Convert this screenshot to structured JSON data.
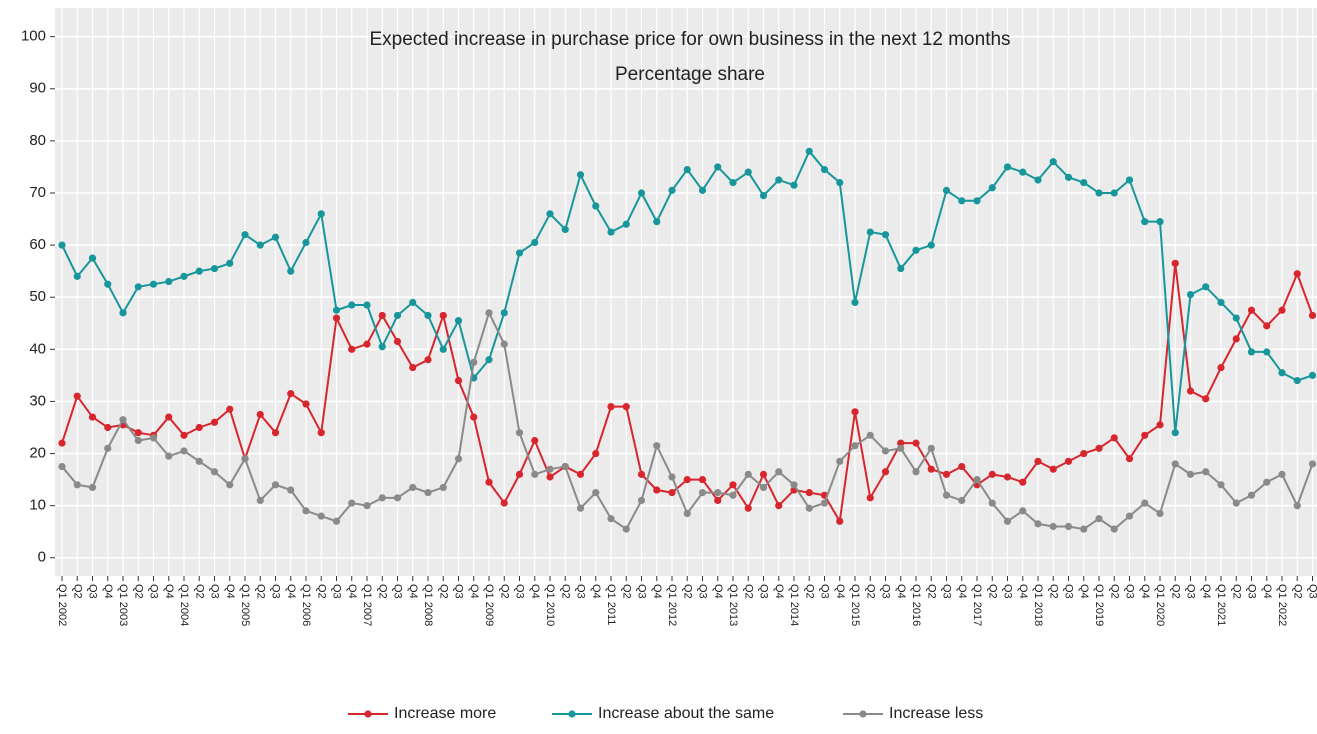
{
  "chart_data": {
    "type": "line",
    "title": "Expected increase in purchase price for own business in the next 12 months",
    "subtitle": "Percentage share",
    "categories": [
      "Q1 2002",
      "Q2",
      "Q3",
      "Q4",
      "Q1 2003",
      "Q2",
      "Q3",
      "Q4",
      "Q1 2004",
      "Q2",
      "Q3",
      "Q4",
      "Q1 2005",
      "Q2",
      "Q3",
      "Q4",
      "Q1 2006",
      "Q2",
      "Q3",
      "Q4",
      "Q1 2007",
      "Q2",
      "Q3",
      "Q4",
      "Q1 2008",
      "Q2",
      "Q3",
      "Q4",
      "Q1 2009",
      "Q2",
      "Q3",
      "Q4",
      "Q1 2010",
      "Q2",
      "Q3",
      "Q4",
      "Q1 2011",
      "Q2",
      "Q3",
      "Q4",
      "Q1 2012",
      "Q2",
      "Q3",
      "Q4",
      "Q1 2013",
      "Q2",
      "Q3",
      "Q4",
      "Q1 2014",
      "Q2",
      "Q3",
      "Q4",
      "Q1 2015",
      "Q2",
      "Q3",
      "Q4",
      "Q1 2016",
      "Q2",
      "Q3",
      "Q4",
      "Q1 2017",
      "Q2",
      "Q3",
      "Q4",
      "Q1 2018",
      "Q2",
      "Q3",
      "Q4",
      "Q1 2019",
      "Q2",
      "Q3",
      "Q4",
      "Q1 2020",
      "Q2",
      "Q3",
      "Q4",
      "Q1 2021",
      "Q2",
      "Q3",
      "Q4",
      "Q1 2022",
      "Q2",
      "Q3"
    ],
    "series": [
      {
        "name": "Increase more",
        "color": "#d7262e",
        "values": [
          22,
          31,
          27,
          25,
          25.5,
          24,
          23.5,
          27,
          23.5,
          25,
          26,
          28.5,
          19,
          27.5,
          24,
          31.5,
          29.5,
          24,
          46,
          40,
          41,
          46.5,
          41.5,
          36.5,
          38,
          46.5,
          34,
          27,
          14.5,
          10.5,
          16,
          22.5,
          15.5,
          17.5,
          16,
          20,
          29,
          29,
          16,
          13,
          12.5,
          15,
          15,
          11,
          14,
          9.5,
          16,
          10,
          13,
          12.5,
          12,
          7,
          28,
          11.5,
          16.5,
          22,
          22,
          17,
          16,
          17.5,
          14,
          16,
          15.5,
          14.5,
          18.5,
          17,
          18.5,
          20,
          21,
          23,
          19,
          23.5,
          25.5,
          56.5,
          32,
          30.5,
          36.5,
          42,
          47.5,
          44.5,
          47.5,
          54.5,
          46.5
        ]
      },
      {
        "name": "Increase about the same",
        "color": "#17979b",
        "values": [
          60,
          54,
          57.5,
          52.5,
          47,
          52,
          52.5,
          53,
          54,
          55,
          55.5,
          56.5,
          62,
          60,
          61.5,
          55,
          60.5,
          66,
          47.5,
          48.5,
          48.5,
          40.5,
          46.5,
          49,
          46.5,
          40,
          45.5,
          34.5,
          38,
          47,
          58.5,
          60.5,
          66,
          63,
          73.5,
          67.5,
          62.5,
          64,
          70,
          64.5,
          70.5,
          74.5,
          70.5,
          75,
          72,
          74,
          69.5,
          72.5,
          71.5,
          78,
          74.5,
          72,
          49,
          62.5,
          62,
          55.5,
          59,
          60,
          70.5,
          68.5,
          68.5,
          71,
          75,
          74,
          72.5,
          76,
          73,
          72,
          70,
          70,
          72.5,
          64.5,
          64.5,
          24,
          50.5,
          52,
          49,
          46,
          39.5,
          39.5,
          35.5,
          34,
          35
        ]
      },
      {
        "name": "Increase less",
        "color": "#8a8a8a",
        "values": [
          17.5,
          14,
          13.5,
          21,
          26.5,
          22.5,
          23,
          19.5,
          20.5,
          18.5,
          16.5,
          14,
          19,
          11,
          14,
          13,
          9,
          8,
          7,
          10.5,
          10,
          11.5,
          11.5,
          13.5,
          12.5,
          13.5,
          19,
          37.5,
          47,
          41,
          24,
          16,
          17,
          17.5,
          9.5,
          12.5,
          7.5,
          5.5,
          11,
          21.5,
          15.5,
          8.5,
          12.5,
          12.5,
          12,
          16,
          13.5,
          16.5,
          14,
          9.5,
          10.5,
          18.5,
          21.5,
          23.5,
          20.5,
          21,
          16.5,
          21,
          12,
          11,
          15,
          10.5,
          7,
          9,
          6.5,
          6,
          6,
          5.5,
          7.5,
          5.5,
          8,
          10.5,
          8.5,
          18,
          16,
          16.5,
          14,
          10.5,
          12,
          14.5,
          16,
          10,
          18
        ]
      }
    ],
    "ylim": [
      -3.5,
      105.5
    ],
    "yticks": [
      0,
      10,
      20,
      30,
      40,
      50,
      60,
      70,
      80,
      90,
      100
    ],
    "grid": true,
    "legend": "bottom"
  }
}
